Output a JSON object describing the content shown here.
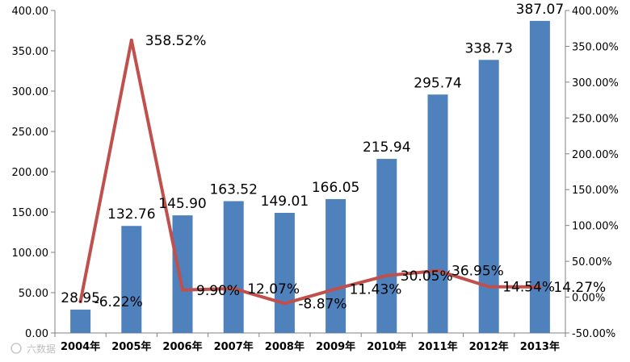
{
  "chart_data": {
    "type": "bar+line",
    "categories": [
      "2004年",
      "2005年",
      "2006年",
      "2007年",
      "2008年",
      "2009年",
      "2010年",
      "2011年",
      "2012年",
      "2013年"
    ],
    "series": [
      {
        "type": "bar",
        "axis": "left",
        "values": [
          28.95,
          132.76,
          145.9,
          163.52,
          149.01,
          166.05,
          215.94,
          295.74,
          338.73,
          387.07
        ],
        "labels": [
          "28.95",
          "132.76",
          "145.90",
          "163.52",
          "149.01",
          "166.05",
          "215.94",
          "295.74",
          "338.73",
          "387.07"
        ],
        "color": "#4f81bd"
      },
      {
        "type": "line",
        "axis": "right",
        "values": [
          -6.22,
          358.52,
          9.9,
          12.07,
          -8.87,
          11.43,
          30.05,
          36.95,
          14.54,
          14.27
        ],
        "labels": [
          "-6.22%",
          "358.52%",
          "9.90%",
          "12.07%",
          "-8.87%",
          "11.43%",
          "30.05%",
          "36.95%",
          "14.54%",
          "14.27%"
        ],
        "color": "#c0504d"
      }
    ],
    "left_axis": {
      "ylim": [
        0,
        400
      ],
      "ticks": [
        "0.00",
        "50.00",
        "100.00",
        "150.00",
        "200.00",
        "250.00",
        "300.00",
        "350.00",
        "400.00"
      ]
    },
    "right_axis": {
      "ylim": [
        -50,
        400
      ],
      "ticks": [
        "-50.00%",
        "0.00%",
        "50.00%",
        "100.00%",
        "150.00%",
        "200.00%",
        "250.00%",
        "300.00%",
        "350.00%",
        "400.00%"
      ]
    },
    "grid": false,
    "legend": "none"
  },
  "watermark": "六数据"
}
